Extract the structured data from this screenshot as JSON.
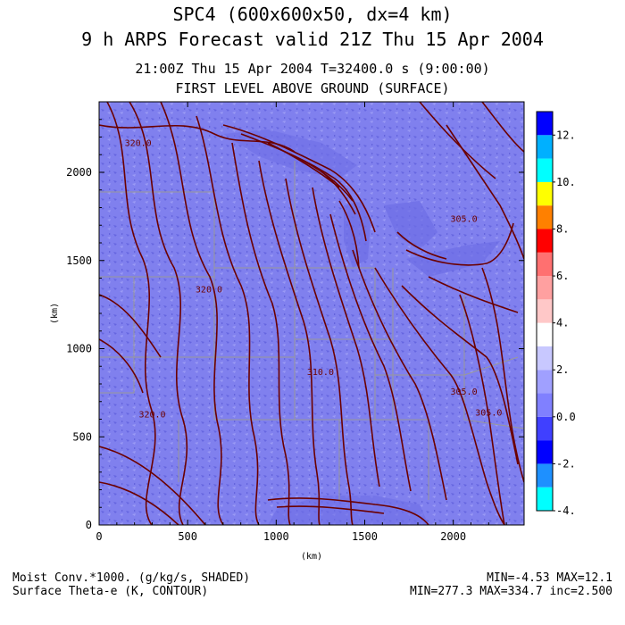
{
  "header": {
    "title_line1": "SPC4 (600x600x50, dx=4 km)",
    "title_line2": "9 h ARPS Forecast valid 21Z Thu 15 Apr 2004",
    "time_line": "21:00Z Thu 15 Apr 2004      T=32400.0 s (9:00:00)",
    "level_line": "FIRST LEVEL ABOVE GROUND (SURFACE)"
  },
  "footer": {
    "shaded_field": "Moist Conv.*1000. (g/kg/s, SHADED)",
    "contour_field": "Surface Theta-e (K, CONTOUR)",
    "shaded_range": "MIN=-4.53 MAX=12.1",
    "contour_range": "MIN=277.3 MAX=334.7 inc=2.500"
  },
  "colors": {
    "background_fill": "#8080ee",
    "contour": "#6b0000",
    "state_lines": "#999999",
    "water": "#6e6ee6"
  },
  "chart_data": {
    "type": "heatmap",
    "xlabel": "(km)",
    "ylabel": "(km)",
    "xlim": [
      0,
      2400
    ],
    "ylim": [
      0,
      2400
    ],
    "x_ticks": [
      0,
      500,
      1000,
      1500,
      2000
    ],
    "y_ticks": [
      0,
      500,
      1000,
      1500,
      2000
    ],
    "x_tick_labels": [
      "0",
      "500",
      "1000",
      "1500",
      "2000"
    ],
    "y_tick_labels": [
      "0",
      "500",
      "1000",
      "1500",
      "2000"
    ],
    "contour_labels": [
      {
        "text": "320.0",
        "x": 220,
        "y": 2150
      },
      {
        "text": "320.0",
        "x": 620,
        "y": 1320
      },
      {
        "text": "310.0",
        "x": 1250,
        "y": 850
      },
      {
        "text": "305.0",
        "x": 2060,
        "y": 1720
      },
      {
        "text": "305.0",
        "x": 2060,
        "y": 740
      },
      {
        "text": "320.0",
        "x": 300,
        "y": 610
      },
      {
        "text": "305.0",
        "x": 2200,
        "y": 620
      }
    ],
    "colorbar": {
      "segments": [
        {
          "color": "#00ffff",
          "label": "-4."
        },
        {
          "color": "#1e90ff",
          "label": ""
        },
        {
          "color": "#0000ff",
          "label": "-2."
        },
        {
          "color": "#4040ff",
          "label": ""
        },
        {
          "color": "#8080ff",
          "label": "0.0"
        },
        {
          "color": "#a0a0ff",
          "label": ""
        },
        {
          "color": "#c8c8ff",
          "label": "2."
        },
        {
          "color": "#ffffff",
          "label": ""
        },
        {
          "color": "#ffc8c8",
          "label": "4."
        },
        {
          "color": "#ffa0a0",
          "label": ""
        },
        {
          "color": "#ff7070",
          "label": "6."
        },
        {
          "color": "#ff0000",
          "label": ""
        },
        {
          "color": "#ff8000",
          "label": "8."
        },
        {
          "color": "#ffff00",
          "label": ""
        },
        {
          "color": "#00ffff",
          "label": "10."
        },
        {
          "color": "#00b0ff",
          "label": ""
        },
        {
          "color": "#0000ff",
          "label": "12."
        }
      ]
    }
  }
}
